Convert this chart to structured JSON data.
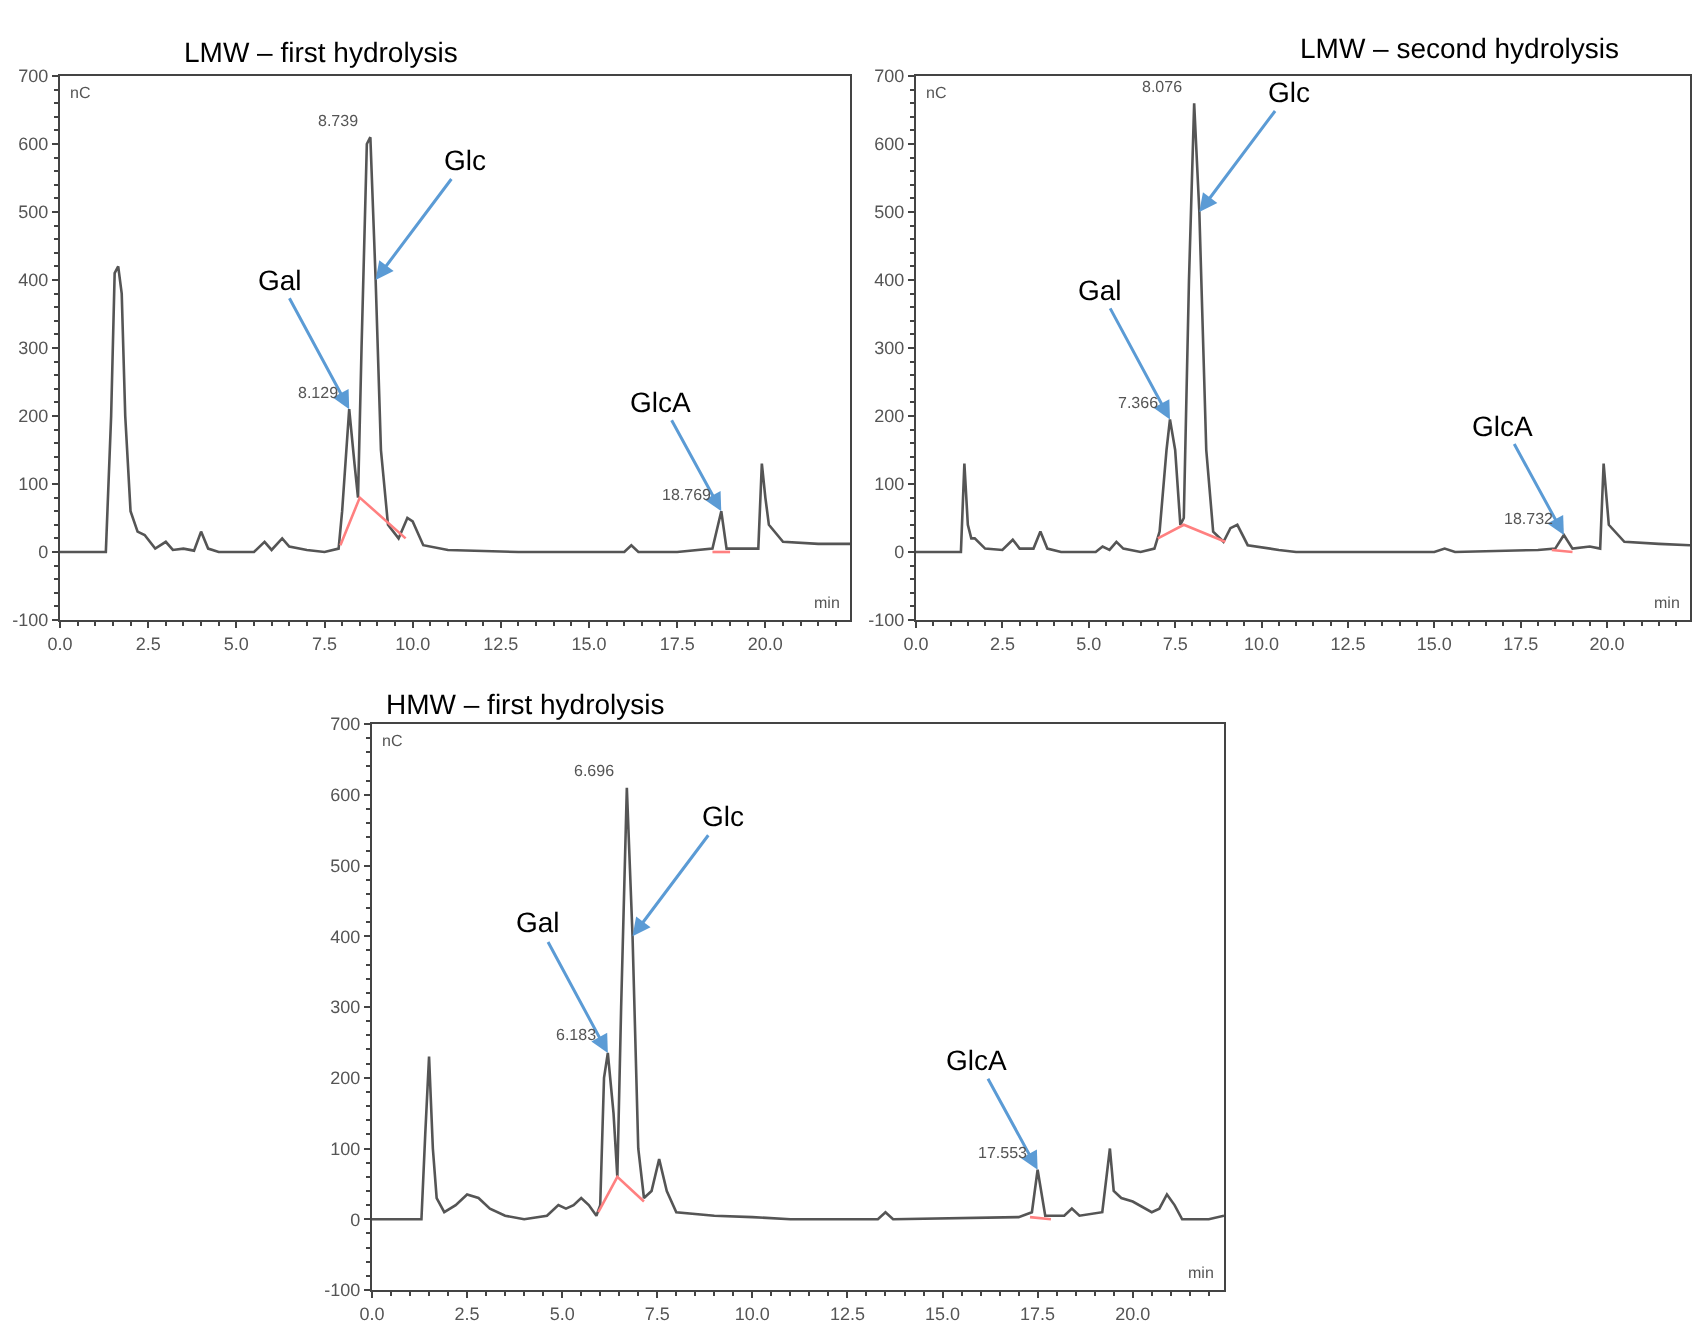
{
  "chart_data": [
    {
      "type": "line",
      "title": "LMW – first hydrolysis",
      "xlabel": "min",
      "ylabel": "nC",
      "xlim": [
        0,
        22.4
      ],
      "ylim": [
        -100,
        700
      ],
      "xticks": [
        {
          "value": 0,
          "label": "0.0"
        },
        {
          "value": 2.5,
          "label": "2.5"
        },
        {
          "value": 5,
          "label": "5.0"
        },
        {
          "value": 7.5,
          "label": "7.5"
        },
        {
          "value": 10,
          "label": "10.0"
        },
        {
          "value": 12.5,
          "label": "12.5"
        },
        {
          "value": 15,
          "label": "15.0"
        },
        {
          "value": 17.5,
          "label": "17.5"
        },
        {
          "value": 20,
          "label": "20.0"
        }
      ],
      "yticks": [
        -100,
        0,
        100,
        200,
        300,
        400,
        500,
        600,
        700
      ],
      "series": [
        {
          "color": "#555555",
          "x": [
            0,
            1.3,
            1.45,
            1.55,
            1.65,
            1.75,
            1.85,
            2.0,
            2.2,
            2.4,
            2.7,
            3.0,
            3.2,
            3.5,
            3.8,
            4.0,
            4.2,
            4.5,
            5.5,
            5.8,
            6.0,
            6.3,
            6.5,
            7.0,
            7.5,
            7.9,
            8.0,
            8.2,
            8.35,
            8.45,
            8.55,
            8.7,
            8.8,
            8.95,
            9.1,
            9.3,
            9.6,
            9.85,
            10.0,
            10.3,
            11,
            13,
            15,
            16,
            16.2,
            16.4,
            17.5,
            18.5,
            18.75,
            18.9,
            19.5,
            19.8,
            19.9,
            20.0,
            20.1,
            20.5,
            21.5,
            22.4
          ],
          "values": [
            0,
            0,
            200,
            410,
            420,
            380,
            200,
            60,
            30,
            25,
            5,
            15,
            3,
            5,
            2,
            30,
            5,
            0,
            0,
            15,
            3,
            20,
            8,
            3,
            0,
            5,
            60,
            210,
            130,
            80,
            300,
            600,
            610,
            400,
            150,
            40,
            20,
            50,
            45,
            10,
            3,
            0,
            0,
            0,
            10,
            0,
            0,
            5,
            60,
            5,
            5,
            5,
            130,
            80,
            40,
            15,
            12,
            12
          ]
        },
        {
          "color": "#ff8080",
          "x": [
            7.95,
            8.5,
            9.8,
            null,
            18.5,
            19.0
          ],
          "values": [
            10,
            80,
            20,
            null,
            0,
            0
          ]
        }
      ],
      "annotations": [
        {
          "text": "Gal",
          "x": 8.2,
          "y": 210
        },
        {
          "text": "Glc",
          "x": 8.95,
          "y": 400
        },
        {
          "text": "GlcA",
          "x": 18.75,
          "y": 60
        },
        {
          "text": "8.739",
          "x": 8.8,
          "y": 610
        },
        {
          "text": "8.129",
          "x": 8.2,
          "y": 210
        },
        {
          "text": "18.769",
          "x": 18.75,
          "y": 60
        }
      ]
    },
    {
      "type": "line",
      "title": "LMW – second hydrolysis",
      "xlabel": "min",
      "ylabel": "nC",
      "xlim": [
        0,
        22.4
      ],
      "ylim": [
        -100,
        700
      ],
      "xticks": [
        {
          "value": 0,
          "label": "0.0"
        },
        {
          "value": 2.5,
          "label": "2.5"
        },
        {
          "value": 5,
          "label": "5.0"
        },
        {
          "value": 7.5,
          "label": "7.5"
        },
        {
          "value": 10,
          "label": "10.0"
        },
        {
          "value": 12.5,
          "label": "12.5"
        },
        {
          "value": 15,
          "label": "15.0"
        },
        {
          "value": 17.5,
          "label": "17.5"
        },
        {
          "value": 20,
          "label": "20.0"
        }
      ],
      "yticks": [
        -100,
        0,
        100,
        200,
        300,
        400,
        500,
        600,
        700
      ],
      "series": [
        {
          "color": "#555555",
          "x": [
            0,
            1.3,
            1.4,
            1.5,
            1.6,
            1.7,
            2.0,
            2.5,
            2.8,
            3.0,
            3.4,
            3.6,
            3.8,
            4.2,
            5.2,
            5.4,
            5.6,
            5.8,
            6.0,
            6.5,
            6.9,
            7.05,
            7.25,
            7.35,
            7.5,
            7.65,
            7.75,
            7.9,
            8.05,
            8.2,
            8.4,
            8.6,
            8.9,
            9.1,
            9.3,
            9.6,
            10.5,
            11,
            15,
            15.3,
            15.6,
            18,
            18.5,
            18.75,
            19.0,
            19.5,
            19.8,
            19.9,
            20.05,
            20.5,
            21.5,
            22.4
          ],
          "values": [
            0,
            0,
            130,
            40,
            20,
            20,
            5,
            3,
            18,
            5,
            5,
            30,
            5,
            0,
            0,
            8,
            3,
            15,
            5,
            0,
            5,
            30,
            150,
            195,
            150,
            40,
            50,
            400,
            660,
            500,
            150,
            30,
            15,
            35,
            40,
            10,
            3,
            0,
            0,
            5,
            0,
            3,
            5,
            25,
            5,
            8,
            5,
            130,
            40,
            15,
            12,
            10
          ]
        },
        {
          "color": "#ff8080",
          "x": [
            7.0,
            7.75,
            8.95,
            null,
            18.4,
            19.0
          ],
          "values": [
            20,
            40,
            15,
            null,
            3,
            0
          ]
        }
      ],
      "annotations": [
        {
          "text": "Gal",
          "x": 7.35,
          "y": 195
        },
        {
          "text": "Glc",
          "x": 8.2,
          "y": 500
        },
        {
          "text": "GlcA",
          "x": 18.75,
          "y": 25
        },
        {
          "text": "8.076",
          "x": 8.05,
          "y": 660
        },
        {
          "text": "7.366",
          "x": 7.35,
          "y": 195
        },
        {
          "text": "18.732",
          "x": 18.75,
          "y": 25
        }
      ]
    },
    {
      "type": "line",
      "title": "HMW – first hydrolysis",
      "xlabel": "min",
      "ylabel": "nC",
      "xlim": [
        0,
        22.4
      ],
      "ylim": [
        -100,
        700
      ],
      "xticks": [
        {
          "value": 0,
          "label": "0.0"
        },
        {
          "value": 2.5,
          "label": "2.5"
        },
        {
          "value": 5,
          "label": "5.0"
        },
        {
          "value": 7.5,
          "label": "7.5"
        },
        {
          "value": 10,
          "label": "10.0"
        },
        {
          "value": 12.5,
          "label": "12.5"
        },
        {
          "value": 15,
          "label": "15.0"
        },
        {
          "value": 17.5,
          "label": "17.5"
        },
        {
          "value": 20,
          "label": "20.0"
        }
      ],
      "yticks": [
        -100,
        0,
        100,
        200,
        300,
        400,
        500,
        600,
        700
      ],
      "series": [
        {
          "color": "#555555",
          "x": [
            0,
            1.3,
            1.4,
            1.5,
            1.6,
            1.7,
            1.9,
            2.2,
            2.5,
            2.8,
            3.1,
            3.5,
            4.0,
            4.6,
            4.9,
            5.1,
            5.3,
            5.5,
            5.7,
            5.9,
            6.0,
            6.1,
            6.2,
            6.35,
            6.45,
            6.55,
            6.7,
            6.85,
            7.0,
            7.15,
            7.35,
            7.55,
            7.75,
            8.0,
            9,
            10,
            11,
            13.3,
            13.5,
            13.7,
            17.0,
            17.35,
            17.5,
            17.7,
            18.2,
            18.4,
            18.6,
            19.2,
            19.4,
            19.5,
            19.7,
            20.0,
            20.5,
            20.7,
            20.9,
            21.1,
            21.3,
            22.0,
            22.4
          ],
          "values": [
            0,
            0,
            120,
            230,
            100,
            30,
            10,
            20,
            35,
            30,
            15,
            5,
            0,
            5,
            20,
            15,
            20,
            30,
            20,
            5,
            20,
            200,
            235,
            150,
            60,
            300,
            610,
            400,
            100,
            30,
            40,
            85,
            40,
            10,
            5,
            3,
            0,
            0,
            10,
            0,
            3,
            10,
            70,
            5,
            5,
            15,
            5,
            10,
            100,
            40,
            30,
            25,
            10,
            15,
            35,
            20,
            0,
            0,
            5
          ]
        },
        {
          "color": "#ff8080",
          "x": [
            5.95,
            6.45,
            7.15,
            null,
            17.3,
            17.85
          ],
          "values": [
            10,
            60,
            25,
            null,
            3,
            0
          ]
        }
      ],
      "annotations": [
        {
          "text": "Gal",
          "x": 6.2,
          "y": 235
        },
        {
          "text": "Glc",
          "x": 6.85,
          "y": 400
        },
        {
          "text": "GlcA",
          "x": 17.5,
          "y": 70
        },
        {
          "text": "6.696",
          "x": 6.7,
          "y": 610
        },
        {
          "text": "6.183",
          "x": 6.2,
          "y": 235
        },
        {
          "text": "17.553",
          "x": 17.5,
          "y": 70
        }
      ]
    }
  ]
}
